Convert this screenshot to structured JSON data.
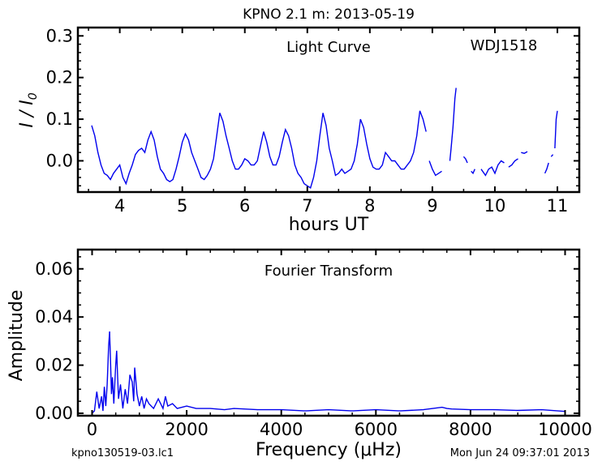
{
  "title": "KPNO 2.1 m:  2013-05-19",
  "footer": {
    "left": "kpno130519-03.lc1",
    "right": "Mon Jun 24 09:37:01 2013"
  },
  "colors": {
    "line": "#0000ee",
    "axes": "#000000",
    "background": "#ffffff"
  },
  "chart_data": [
    {
      "type": "line",
      "annotation": "Light Curve",
      "object_label": "WDJ1518",
      "xlabel": "hours UT",
      "ylabel": "I / I0",
      "xlim": [
        3.33,
        11.35
      ],
      "ylim": [
        -0.075,
        0.32
      ],
      "xticks": [
        4,
        5,
        6,
        7,
        8,
        9,
        10,
        11
      ],
      "yticks": [
        0.0,
        0.1,
        0.2,
        0.3
      ],
      "ytick_labels": [
        "0.0",
        "0.1",
        "0.2",
        "0.3"
      ],
      "segments": [
        {
          "x": [
            3.55,
            3.6,
            3.65,
            3.7,
            3.75,
            3.8,
            3.85,
            3.9,
            3.95,
            4.0,
            4.05,
            4.1,
            4.15,
            4.2,
            4.25,
            4.3,
            4.35,
            4.4,
            4.45,
            4.5,
            4.55,
            4.6,
            4.65,
            4.7,
            4.75,
            4.8,
            4.85,
            4.9,
            4.95,
            5.0,
            5.05,
            5.1,
            5.15,
            5.2,
            5.25,
            5.3,
            5.35,
            5.4,
            5.45,
            5.5,
            5.55,
            5.6,
            5.65,
            5.7,
            5.75,
            5.8,
            5.85,
            5.9,
            5.95,
            6.0,
            6.05,
            6.1,
            6.15,
            6.2,
            6.25,
            6.3,
            6.35,
            6.4,
            6.45,
            6.5,
            6.55,
            6.6,
            6.65,
            6.7,
            6.75,
            6.8,
            6.85,
            6.9,
            6.95,
            7.0,
            7.05,
            7.1,
            7.15,
            7.2,
            7.25,
            7.3,
            7.35,
            7.4,
            7.45,
            7.5,
            7.55,
            7.6,
            7.65,
            7.7,
            7.75,
            7.8,
            7.85,
            7.9,
            7.95,
            8.0,
            8.05,
            8.1,
            8.15,
            8.2,
            8.25,
            8.3,
            8.35,
            8.4,
            8.45,
            8.5,
            8.55,
            8.6,
            8.65,
            8.7,
            8.75,
            8.8,
            8.85,
            8.9
          ],
          "y": [
            0.085,
            0.06,
            0.02,
            -0.01,
            -0.03,
            -0.035,
            -0.045,
            -0.03,
            -0.02,
            -0.01,
            -0.04,
            -0.055,
            -0.03,
            -0.01,
            0.015,
            0.025,
            0.03,
            0.02,
            0.05,
            0.07,
            0.05,
            0.01,
            -0.02,
            -0.03,
            -0.045,
            -0.05,
            -0.045,
            -0.02,
            0.01,
            0.045,
            0.065,
            0.05,
            0.02,
            0.0,
            -0.02,
            -0.04,
            -0.045,
            -0.035,
            -0.02,
            0.005,
            0.06,
            0.115,
            0.095,
            0.06,
            0.03,
            0.0,
            -0.02,
            -0.02,
            -0.01,
            0.005,
            0.0,
            -0.01,
            -0.01,
            0.0,
            0.035,
            0.07,
            0.045,
            0.01,
            -0.01,
            -0.01,
            0.01,
            0.045,
            0.075,
            0.06,
            0.03,
            -0.01,
            -0.03,
            -0.04,
            -0.055,
            -0.06,
            -0.065,
            -0.04,
            0.0,
            0.06,
            0.115,
            0.085,
            0.03,
            0.0,
            -0.035,
            -0.03,
            -0.02,
            -0.03,
            -0.025,
            -0.02,
            0.0,
            0.04,
            0.1,
            0.08,
            0.04,
            0.005,
            -0.015,
            -0.02,
            -0.02,
            -0.01,
            0.02,
            0.01,
            0.0,
            0.0,
            -0.01,
            -0.02,
            -0.02,
            -0.01,
            0.0,
            0.02,
            0.06,
            0.12,
            0.1,
            0.07
          ]
        },
        {
          "x": [
            8.95,
            9.0,
            9.05,
            9.1,
            9.15
          ],
          "y": [
            0.0,
            -0.02,
            -0.035,
            -0.03,
            -0.025
          ]
        },
        {
          "x": [
            9.28,
            9.3,
            9.33,
            9.36,
            9.38
          ],
          "y": [
            0.0,
            0.03,
            0.08,
            0.15,
            0.175
          ]
        },
        {
          "x": [
            9.5,
            9.53,
            9.56
          ],
          "y": [
            0.01,
            0.005,
            -0.005
          ]
        },
        {
          "x": [
            9.62,
            9.65,
            9.68
          ],
          "y": [
            -0.025,
            -0.03,
            -0.02
          ]
        },
        {
          "x": [
            9.78,
            9.85,
            9.9,
            9.95,
            10.0,
            10.05,
            10.1,
            10.15
          ],
          "y": [
            -0.02,
            -0.035,
            -0.02,
            -0.015,
            -0.03,
            -0.01,
            0.0,
            -0.005
          ]
        },
        {
          "x": [
            10.22,
            10.27,
            10.32,
            10.37
          ],
          "y": [
            -0.015,
            -0.01,
            0.0,
            0.005
          ]
        },
        {
          "x": [
            10.42,
            10.47,
            10.52
          ],
          "y": [
            0.02,
            0.018,
            0.022
          ]
        },
        {
          "x": [
            10.8,
            10.83,
            10.86
          ],
          "y": [
            -0.03,
            -0.02,
            -0.005
          ]
        },
        {
          "x": [
            10.9,
            10.93
          ],
          "y": [
            0.01,
            0.015
          ]
        },
        {
          "x": [
            10.96,
            10.98,
            11.0
          ],
          "y": [
            0.03,
            0.1,
            0.12
          ]
        }
      ]
    },
    {
      "type": "line",
      "annotation": "Fourier Transform",
      "xlabel": "Frequency (μHz)",
      "ylabel": "Amplitude",
      "xlim": [
        -300,
        10300
      ],
      "ylim": [
        -0.001,
        0.068
      ],
      "xticks": [
        0,
        2000,
        4000,
        6000,
        8000,
        10000
      ],
      "yticks": [
        0.0,
        0.02,
        0.04,
        0.06
      ],
      "ytick_labels": [
        "0.00",
        "0.02",
        "0.04",
        "0.06"
      ],
      "x": [
        0,
        50,
        100,
        150,
        200,
        230,
        260,
        290,
        320,
        350,
        370,
        390,
        410,
        430,
        460,
        500,
        520,
        540,
        560,
        600,
        650,
        700,
        750,
        800,
        850,
        880,
        900,
        950,
        1000,
        1050,
        1100,
        1150,
        1200,
        1300,
        1400,
        1500,
        1550,
        1600,
        1700,
        1800,
        2000,
        2200,
        2500,
        2800,
        3000,
        3500,
        4000,
        4500,
        5000,
        5500,
        6000,
        6500,
        7000,
        7200,
        7400,
        7500,
        7600,
        8000,
        8500,
        9000,
        9500,
        10000
      ],
      "y": [
        0.0,
        0.001,
        0.009,
        0.002,
        0.007,
        0.001,
        0.011,
        0.003,
        0.012,
        0.028,
        0.034,
        0.022,
        0.008,
        0.015,
        0.004,
        0.02,
        0.026,
        0.015,
        0.006,
        0.012,
        0.002,
        0.01,
        0.004,
        0.016,
        0.013,
        0.005,
        0.019,
        0.008,
        0.003,
        0.007,
        0.002,
        0.006,
        0.004,
        0.002,
        0.006,
        0.002,
        0.007,
        0.003,
        0.004,
        0.002,
        0.003,
        0.002,
        0.002,
        0.0015,
        0.002,
        0.0015,
        0.0015,
        0.001,
        0.0015,
        0.001,
        0.0015,
        0.001,
        0.0015,
        0.002,
        0.0025,
        0.002,
        0.0018,
        0.0015,
        0.0015,
        0.0012,
        0.0015,
        0.0008
      ]
    }
  ]
}
